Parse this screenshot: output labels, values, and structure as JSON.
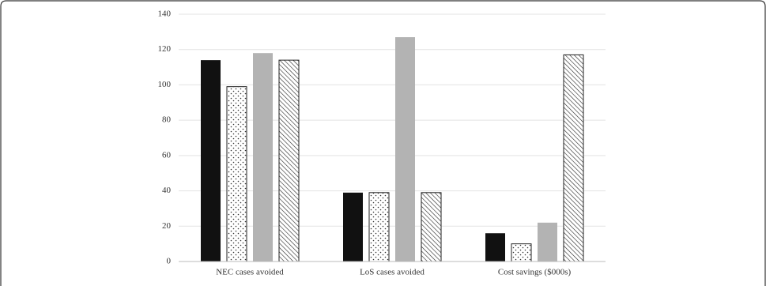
{
  "chart_data": {
    "type": "bar",
    "categories": [
      "NEC cases avoided",
      "LoS cases avoided",
      "Cost savings ($000s)"
    ],
    "series": [
      {
        "color": "#111111",
        "pattern": "solid",
        "values": [
          114,
          39,
          16
        ]
      },
      {
        "color": "#ffffff",
        "pattern": "dots",
        "values": [
          99,
          39,
          10
        ]
      },
      {
        "color": "#b3b3b3",
        "pattern": "solid",
        "values": [
          118,
          127,
          22
        ]
      },
      {
        "color": "#ffffff",
        "pattern": "hatch",
        "values": [
          114,
          39,
          117
        ]
      }
    ],
    "ylim": [
      0,
      140
    ],
    "yticks": [
      0,
      20,
      40,
      60,
      80,
      100,
      120,
      140
    ],
    "grid": true
  }
}
